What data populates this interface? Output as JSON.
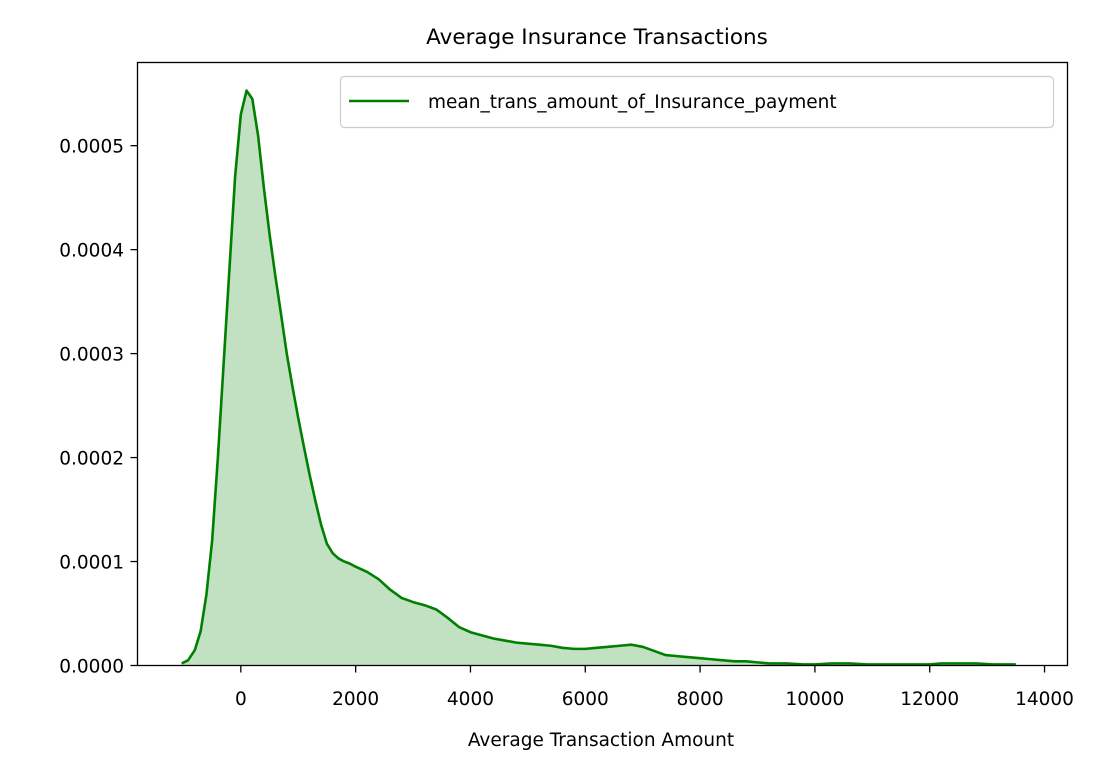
{
  "chart_data": {
    "type": "area",
    "title": "Average Insurance Transactions",
    "xlabel": "Average Transaction Amount",
    "ylabel": "",
    "xlim": [
      -1800,
      14400
    ],
    "ylim": [
      0,
      0.00058
    ],
    "x_ticks": [
      0,
      2000,
      4000,
      6000,
      8000,
      10000,
      12000,
      14000
    ],
    "x_tick_labels": [
      "0",
      "2000",
      "4000",
      "6000",
      "8000",
      "10000",
      "12000",
      "14000"
    ],
    "y_ticks": [
      0,
      0.0001,
      0.0002,
      0.0003,
      0.0004,
      0.0005
    ],
    "y_tick_labels": [
      "0.0000",
      "0.0001",
      "0.0002",
      "0.0003",
      "0.0004",
      "0.0005"
    ],
    "grid": false,
    "legend": {
      "position": "top-right"
    },
    "colors": {
      "line": "#008000",
      "fill": "#c2e0c2"
    },
    "series": [
      {
        "name": "mean_trans_amount_of_Insurance_payment",
        "x": [
          -1030,
          -920,
          -800,
          -700,
          -600,
          -500,
          -400,
          -300,
          -200,
          -100,
          0,
          100,
          200,
          300,
          400,
          500,
          600,
          700,
          800,
          900,
          1000,
          1100,
          1200,
          1300,
          1400,
          1500,
          1600,
          1700,
          1800,
          1900,
          2000,
          2200,
          2400,
          2600,
          2800,
          3000,
          3200,
          3400,
          3600,
          3800,
          4000,
          4200,
          4400,
          4600,
          4800,
          5000,
          5200,
          5400,
          5600,
          5800,
          6000,
          6200,
          6400,
          6600,
          6800,
          7000,
          7200,
          7400,
          7600,
          7800,
          8000,
          8200,
          8400,
          8600,
          8800,
          9000,
          9200,
          9500,
          9800,
          10000,
          10300,
          10600,
          10900,
          11200,
          11500,
          11800,
          12000,
          12200,
          12500,
          12800,
          13100,
          13300,
          13500
        ],
        "y": [
          2e-06,
          5e-06,
          1.5e-05,
          3.3e-05,
          6.8e-05,
          0.00012,
          0.0002,
          0.00029,
          0.00038,
          0.00047,
          0.00053,
          0.000553,
          0.000545,
          0.00051,
          0.00046,
          0.000415,
          0.000375,
          0.000338,
          0.0003,
          0.000268,
          0.000238,
          0.00021,
          0.000183,
          0.000158,
          0.000135,
          0.000117,
          0.000108,
          0.000103,
          0.0001,
          9.8e-05,
          9.5e-05,
          9e-05,
          8.3e-05,
          7.3e-05,
          6.5e-05,
          6.1e-05,
          5.8e-05,
          5.4e-05,
          4.6e-05,
          3.7e-05,
          3.2e-05,
          2.9e-05,
          2.6e-05,
          2.4e-05,
          2.2e-05,
          2.1e-05,
          2e-05,
          1.9e-05,
          1.7e-05,
          1.6e-05,
          1.6e-05,
          1.7e-05,
          1.8e-05,
          1.9e-05,
          2e-05,
          1.8e-05,
          1.4e-05,
          1e-05,
          9e-06,
          8e-06,
          7e-06,
          6e-06,
          5e-06,
          4e-06,
          4e-06,
          3e-06,
          2e-06,
          2e-06,
          1e-06,
          1e-06,
          2e-06,
          2e-06,
          1e-06,
          1e-06,
          1e-06,
          1e-06,
          1e-06,
          2e-06,
          2e-06,
          2e-06,
          1e-06,
          1e-06,
          1e-06
        ]
      }
    ]
  }
}
